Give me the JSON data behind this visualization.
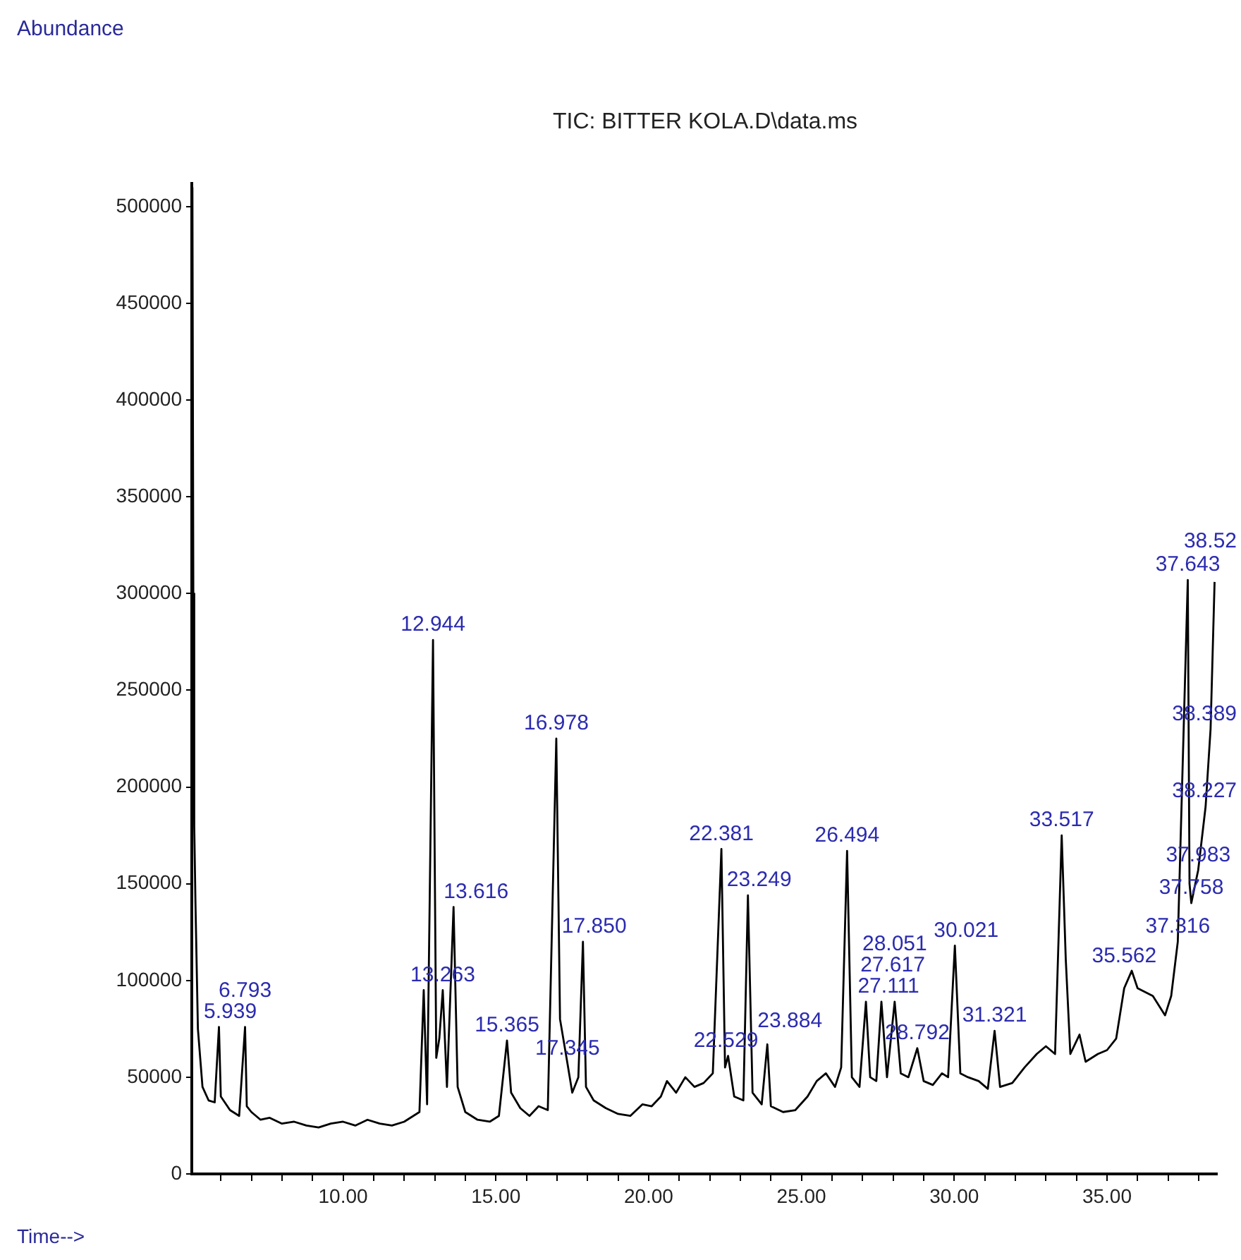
{
  "chart_data": {
    "type": "line",
    "title": "TIC: BITTER KOLA.D\\data.ms",
    "xlabel": "Time-->",
    "x": [
      5.07,
      5.1,
      5.13,
      5.17,
      5.25,
      5.4,
      5.6,
      5.8,
      5.939,
      6.0,
      6.3,
      6.6,
      6.793,
      6.85,
      7.0,
      7.3,
      7.6,
      8.0,
      8.4,
      8.8,
      9.2,
      9.6,
      10.0,
      10.4,
      10.8,
      11.2,
      11.6,
      12.0,
      12.3,
      12.5,
      12.64,
      12.75,
      12.944,
      13.05,
      13.15,
      13.263,
      13.4,
      13.616,
      13.75,
      14.0,
      14.4,
      14.8,
      15.1,
      15.365,
      15.5,
      15.8,
      16.1,
      16.4,
      16.7,
      16.978,
      17.1,
      17.345,
      17.5,
      17.7,
      17.85,
      17.95,
      18.2,
      18.6,
      19.0,
      19.4,
      19.8,
      20.1,
      20.4,
      20.6,
      20.9,
      21.2,
      21.5,
      21.8,
      22.1,
      22.381,
      22.5,
      22.6,
      22.8,
      23.1,
      23.249,
      23.4,
      23.7,
      23.884,
      24.0,
      24.4,
      24.8,
      25.2,
      25.5,
      25.8,
      26.1,
      26.3,
      26.494,
      26.65,
      26.9,
      27.111,
      27.25,
      27.45,
      27.617,
      27.8,
      28.051,
      28.25,
      28.5,
      28.792,
      29.0,
      29.3,
      29.6,
      29.8,
      30.021,
      30.2,
      30.45,
      30.8,
      31.1,
      31.321,
      31.5,
      31.9,
      32.3,
      32.7,
      33.0,
      33.3,
      33.517,
      33.65,
      33.8,
      34.1,
      34.3,
      34.7,
      35.0,
      35.3,
      35.562,
      35.809,
      36.0,
      36.5,
      36.9,
      37.1,
      37.316,
      37.643,
      37.7,
      37.758,
      37.983,
      38.227,
      38.389,
      38.52
    ],
    "series": [
      {
        "color": "#000000",
        "values": [
          510000,
          300000,
          180000,
          140000,
          75000,
          45000,
          38000,
          37000,
          76000,
          40000,
          33000,
          30000,
          76000,
          35000,
          32000,
          28000,
          29000,
          26000,
          27000,
          25000,
          24000,
          26000,
          27000,
          25000,
          28000,
          26000,
          25000,
          27000,
          30000,
          32000,
          95000,
          36000,
          276000,
          60000,
          70000,
          95000,
          45000,
          138000,
          45000,
          32000,
          28000,
          27000,
          30000,
          69000,
          42000,
          34000,
          30000,
          35000,
          33000,
          225000,
          80000,
          57000,
          42000,
          50000,
          120000,
          45000,
          38000,
          34000,
          31000,
          30000,
          36000,
          35000,
          40000,
          48000,
          42000,
          50000,
          45000,
          47000,
          52000,
          168000,
          55000,
          61000,
          40000,
          38000,
          144000,
          42000,
          36000,
          67000,
          35000,
          32000,
          33000,
          40000,
          48000,
          52000,
          45000,
          55000,
          167000,
          50000,
          45000,
          89000,
          50000,
          48000,
          89000,
          50000,
          89000,
          52000,
          50000,
          65000,
          48000,
          46000,
          52000,
          50000,
          118000,
          52000,
          50000,
          48000,
          44000,
          74000,
          45000,
          47000,
          55000,
          62000,
          66000,
          62000,
          175000,
          111000,
          62000,
          72000,
          58000,
          62000,
          64000,
          70000,
          96000,
          105000,
          96000,
          92000,
          82000,
          92000,
          120000,
          307000,
          150000,
          140000,
          157000,
          190000,
          230000,
          306000
        ]
      }
    ],
    "xlim": [
      5.05,
      38.6
    ],
    "xticks": [
      {
        "value": 6,
        "label": null
      },
      {
        "value": 7,
        "label": null
      },
      {
        "value": 8,
        "label": null
      },
      {
        "value": 9,
        "label": null
      },
      {
        "value": 10,
        "label": "10.00"
      },
      {
        "value": 11,
        "label": null
      },
      {
        "value": 12,
        "label": null
      },
      {
        "value": 13,
        "label": null
      },
      {
        "value": 14,
        "label": null
      },
      {
        "value": 15,
        "label": "15.00"
      },
      {
        "value": 16,
        "label": null
      },
      {
        "value": 17,
        "label": null
      },
      {
        "value": 18,
        "label": null
      },
      {
        "value": 19,
        "label": null
      },
      {
        "value": 20,
        "label": "20.00"
      },
      {
        "value": 21,
        "label": null
      },
      {
        "value": 22,
        "label": null
      },
      {
        "value": 23,
        "label": null
      },
      {
        "value": 24,
        "label": null
      },
      {
        "value": 25,
        "label": "25.00"
      },
      {
        "value": 26,
        "label": null
      },
      {
        "value": 27,
        "label": null
      },
      {
        "value": 28,
        "label": null
      },
      {
        "value": 29,
        "label": null
      },
      {
        "value": 30,
        "label": "30.00"
      },
      {
        "value": 31,
        "label": null
      },
      {
        "value": 32,
        "label": null
      },
      {
        "value": 33,
        "label": null
      },
      {
        "value": 34,
        "label": null
      },
      {
        "value": 35,
        "label": "35.00"
      },
      {
        "value": 36,
        "label": null
      },
      {
        "value": 37,
        "label": null
      },
      {
        "value": 38,
        "label": null
      }
    ],
    "ylim": [
      0,
      512000
    ],
    "yticks": [
      0,
      50000,
      100000,
      150000,
      200000,
      250000,
      300000,
      350000,
      400000,
      450000,
      500000
    ],
    "grid": false,
    "legend": false,
    "marker": "none",
    "line_style": "solid",
    "annotations": [
      "Abundance",
      {
        "text": "5.939",
        "x": 5.939,
        "y": 76000
      },
      {
        "text": "6.793",
        "x": 6.793,
        "y": 76000
      },
      {
        "text": "12.944",
        "x": 12.944,
        "y": 276000
      },
      {
        "text": "13.263",
        "x": 13.263,
        "y": 95000
      },
      {
        "text": "13.616",
        "x": 13.616,
        "y": 138000
      },
      {
        "text": "15.365",
        "x": 15.365,
        "y": 69000
      },
      {
        "text": "16.978",
        "x": 16.978,
        "y": 225000
      },
      {
        "text": "17.345",
        "x": 17.345,
        "y": 57000
      },
      {
        "text": "17.850",
        "x": 17.85,
        "y": 120000
      },
      {
        "text": "22.381",
        "x": 22.381,
        "y": 168000
      },
      {
        "text": "22.529",
        "x": 22.529,
        "y": 61000
      },
      {
        "text": "23.249",
        "x": 23.249,
        "y": 144000
      },
      {
        "text": "23.884",
        "x": 23.884,
        "y": 67000
      },
      {
        "text": "26.494",
        "x": 26.494,
        "y": 167000
      },
      {
        "text": "27.111",
        "x": 27.111,
        "y": 89000
      },
      {
        "text": "27.617",
        "x": 27.617,
        "y": 89000
      },
      {
        "text": "28.051",
        "x": 28.051,
        "y": 89000
      },
      {
        "text": "28.792",
        "x": 28.792,
        "y": 65000
      },
      {
        "text": "30.021",
        "x": 30.021,
        "y": 118000
      },
      {
        "text": "31.321",
        "x": 31.321,
        "y": 74000
      },
      {
        "text": "33.517",
        "x": 33.517,
        "y": 175000
      },
      {
        "text": "35.562",
        "x": 35.562,
        "y": 96000
      },
      {
        "text": "37.316",
        "x": 37.316,
        "y": 120000
      },
      {
        "text": "37.758",
        "x": 37.758,
        "y": 140000
      },
      {
        "text": "37.983",
        "x": 37.983,
        "y": 157000
      },
      {
        "text": "38.227",
        "x": 38.227,
        "y": 190000
      },
      {
        "text": "38.389",
        "x": 38.389,
        "y": 230000
      },
      {
        "text": "37.643",
        "x": 37.643,
        "y": 307000
      },
      {
        "text": "38.52",
        "x": 38.52,
        "y": 306000
      }
    ]
  }
}
